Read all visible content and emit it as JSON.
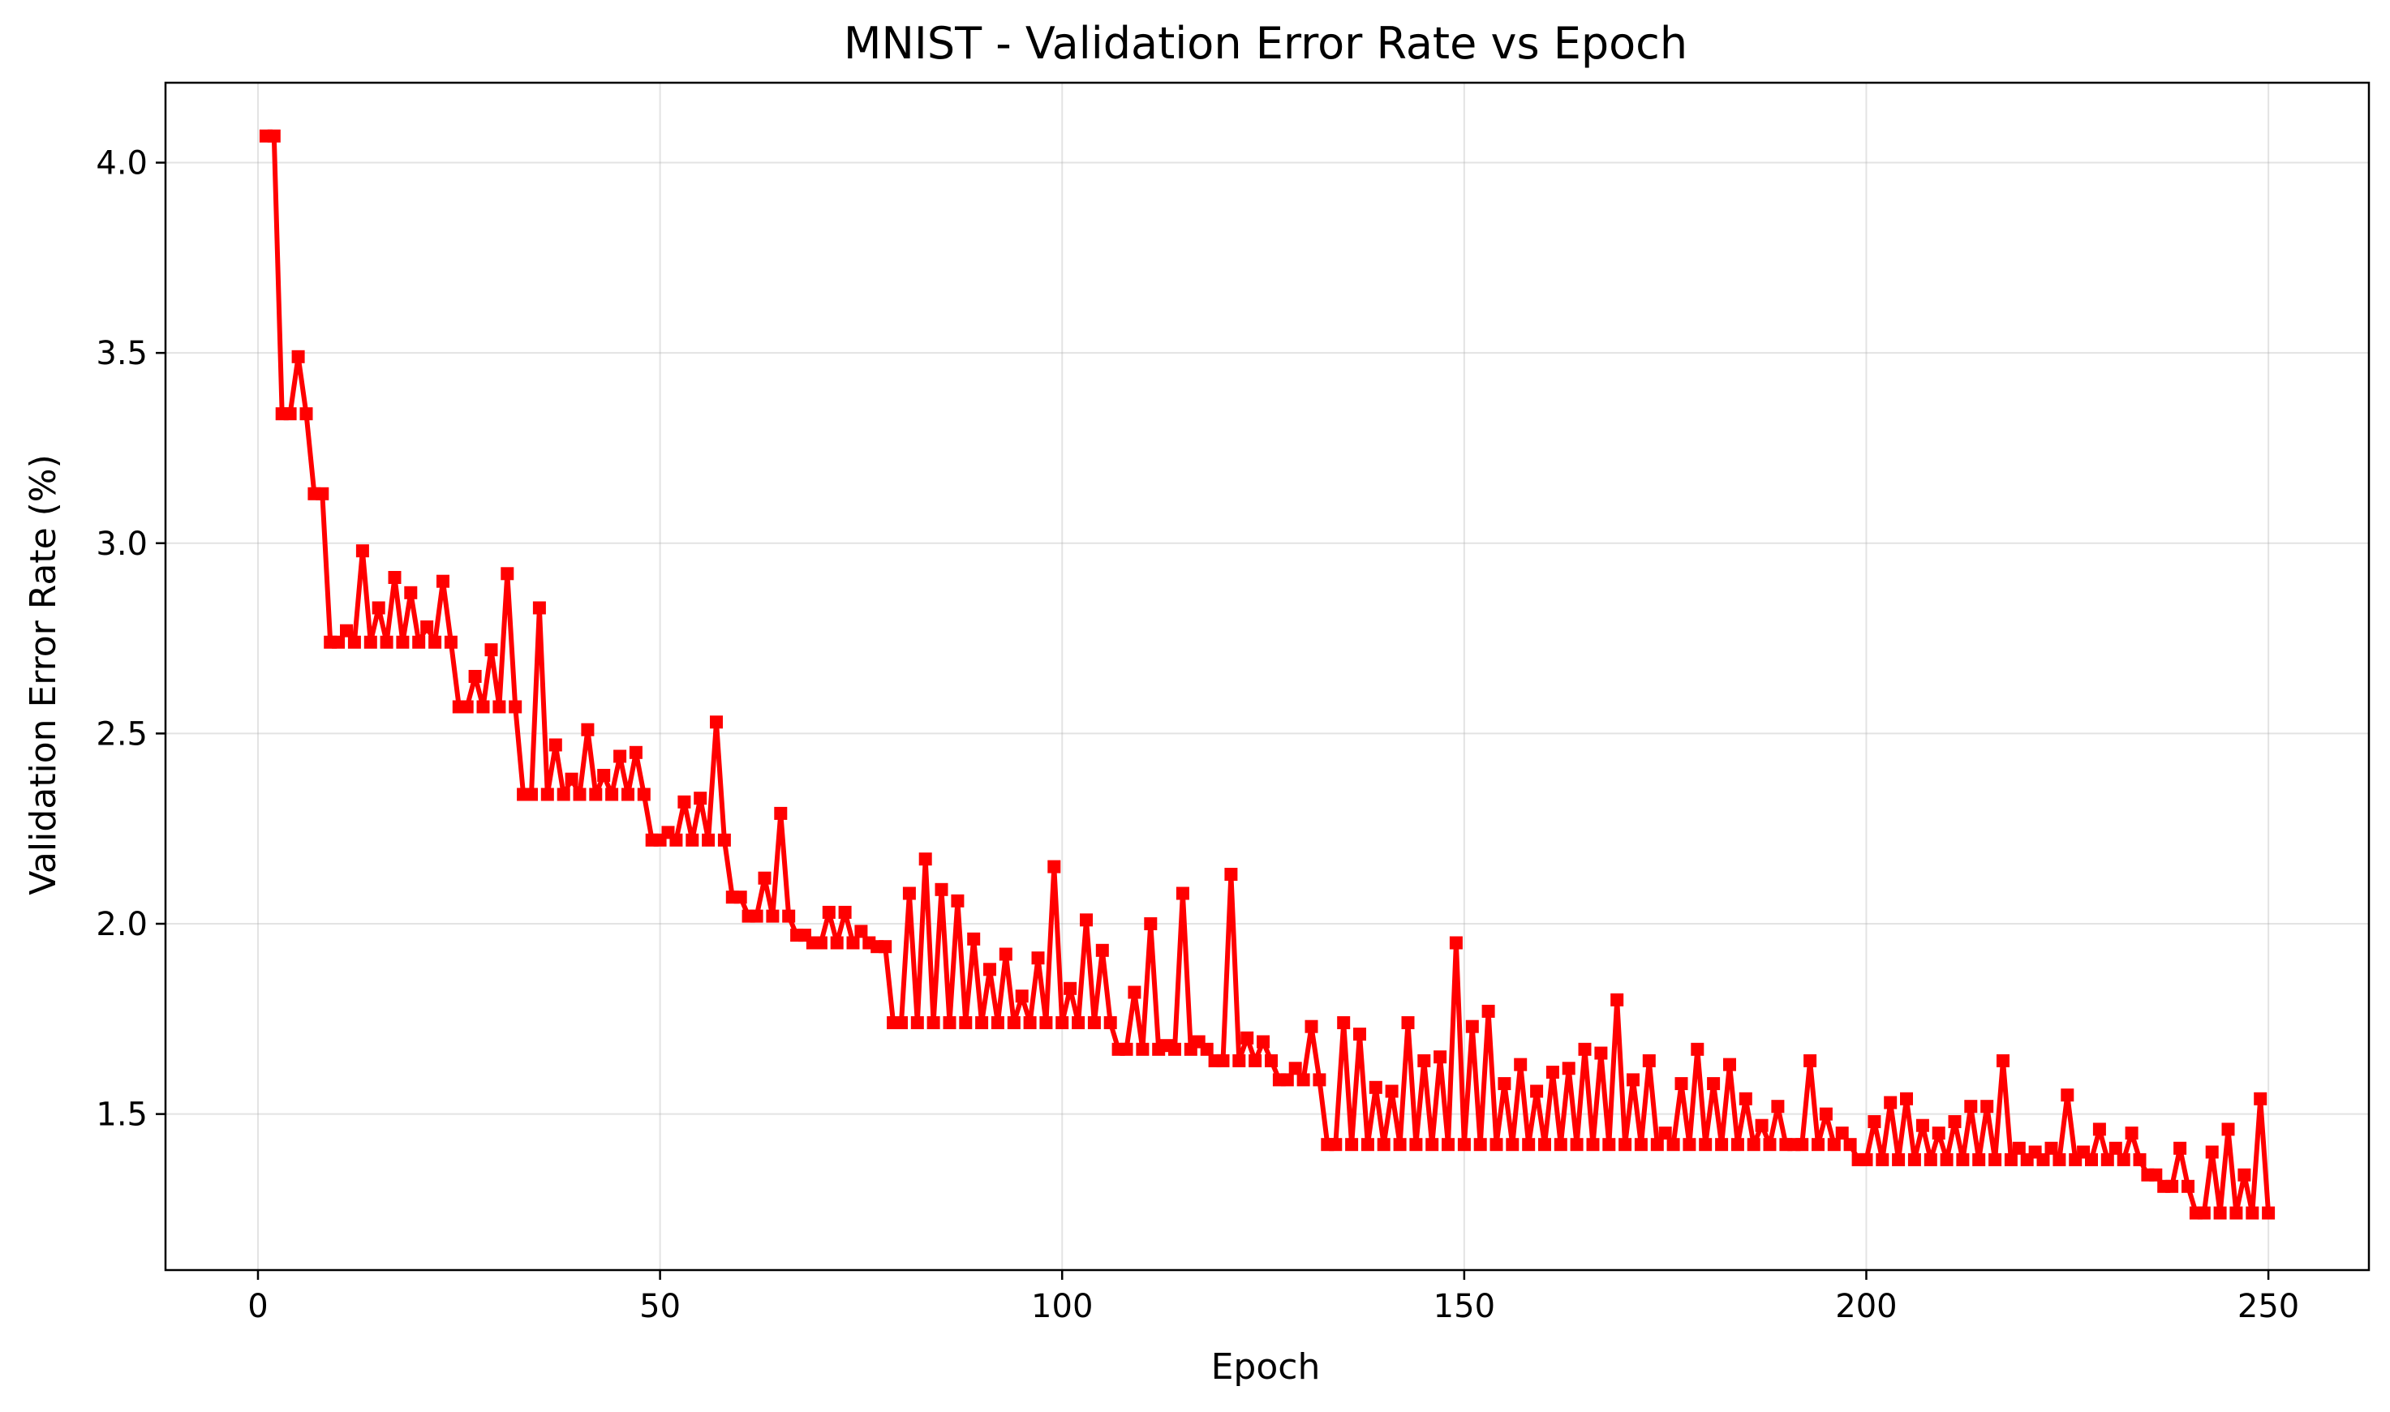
{
  "chart_data": {
    "type": "line",
    "title": "MNIST - Validation Error Rate vs Epoch",
    "xlabel": "Epoch",
    "ylabel": "Validation Error Rate (%)",
    "xlim": [
      -11.5,
      262.5
    ],
    "ylim": [
      1.09,
      4.21
    ],
    "xticks": [
      0,
      50,
      100,
      150,
      200,
      250
    ],
    "yticks": [
      1.5,
      2.0,
      2.5,
      3.0,
      3.5,
      4.0
    ],
    "xtick_labels": [
      "0",
      "50",
      "100",
      "150",
      "200",
      "250"
    ],
    "ytick_labels": [
      "1.5",
      "2.0",
      "2.5",
      "3.0",
      "3.5",
      "4.0"
    ],
    "grid": true,
    "legend": "none",
    "series": [
      {
        "color": "#ff0000",
        "marker": "square",
        "x": [
          1,
          2,
          3,
          4,
          5,
          6,
          7,
          8,
          9,
          10,
          11,
          12,
          13,
          14,
          15,
          16,
          17,
          18,
          19,
          20,
          21,
          22,
          23,
          24,
          25,
          26,
          27,
          28,
          29,
          30,
          31,
          32,
          33,
          34,
          35,
          36,
          37,
          38,
          39,
          40,
          41,
          42,
          43,
          44,
          45,
          46,
          47,
          48,
          49,
          50,
          51,
          52,
          53,
          54,
          55,
          56,
          57,
          58,
          59,
          60,
          61,
          62,
          63,
          64,
          65,
          66,
          67,
          68,
          69,
          70,
          71,
          72,
          73,
          74,
          75,
          76,
          77,
          78,
          79,
          80,
          81,
          82,
          83,
          84,
          85,
          86,
          87,
          88,
          89,
          90,
          91,
          92,
          93,
          94,
          95,
          96,
          97,
          98,
          99,
          100,
          101,
          102,
          103,
          104,
          105,
          106,
          107,
          108,
          109,
          110,
          111,
          112,
          113,
          114,
          115,
          116,
          117,
          118,
          119,
          120,
          121,
          122,
          123,
          124,
          125,
          126,
          127,
          128,
          129,
          130,
          131,
          132,
          133,
          134,
          135,
          136,
          137,
          138,
          139,
          140,
          141,
          142,
          143,
          144,
          145,
          146,
          147,
          148,
          149,
          150,
          151,
          152,
          153,
          154,
          155,
          156,
          157,
          158,
          159,
          160,
          161,
          162,
          163,
          164,
          165,
          166,
          167,
          168,
          169,
          170,
          171,
          172,
          173,
          174,
          175,
          176,
          177,
          178,
          179,
          180,
          181,
          182,
          183,
          184,
          185,
          186,
          187,
          188,
          189,
          190,
          191,
          192,
          193,
          194,
          195,
          196,
          197,
          198,
          199,
          200,
          201,
          202,
          203,
          204,
          205,
          206,
          207,
          208,
          209,
          210,
          211,
          212,
          213,
          214,
          215,
          216,
          217,
          218,
          219,
          220,
          221,
          222,
          223,
          224,
          225,
          226,
          227,
          228,
          229,
          230,
          231,
          232,
          233,
          234,
          235,
          236,
          237,
          238,
          239,
          240,
          241,
          242,
          243,
          244,
          245,
          246,
          247,
          248,
          249,
          250
        ],
        "values": [
          4.07,
          4.07,
          3.34,
          3.34,
          3.49,
          3.34,
          3.13,
          3.13,
          2.74,
          2.74,
          2.77,
          2.74,
          2.98,
          2.74,
          2.83,
          2.74,
          2.91,
          2.74,
          2.87,
          2.74,
          2.78,
          2.74,
          2.9,
          2.74,
          2.57,
          2.57,
          2.65,
          2.57,
          2.72,
          2.57,
          2.92,
          2.57,
          2.34,
          2.34,
          2.83,
          2.34,
          2.47,
          2.34,
          2.38,
          2.34,
          2.51,
          2.34,
          2.39,
          2.34,
          2.44,
          2.34,
          2.45,
          2.34,
          2.22,
          2.22,
          2.24,
          2.22,
          2.32,
          2.22,
          2.33,
          2.22,
          2.53,
          2.22,
          2.07,
          2.07,
          2.02,
          2.02,
          2.12,
          2.02,
          2.29,
          2.02,
          1.97,
          1.97,
          1.95,
          1.95,
          2.03,
          1.95,
          2.03,
          1.95,
          1.98,
          1.95,
          1.94,
          1.94,
          1.74,
          1.74,
          2.08,
          1.74,
          2.17,
          1.74,
          2.09,
          1.74,
          2.06,
          1.74,
          1.96,
          1.74,
          1.88,
          1.74,
          1.92,
          1.74,
          1.81,
          1.74,
          1.91,
          1.74,
          2.15,
          1.74,
          1.83,
          1.74,
          2.01,
          1.74,
          1.93,
          1.74,
          1.67,
          1.67,
          1.82,
          1.67,
          2.0,
          1.67,
          1.68,
          1.67,
          2.08,
          1.67,
          1.69,
          1.67,
          1.64,
          1.64,
          2.13,
          1.64,
          1.7,
          1.64,
          1.69,
          1.64,
          1.59,
          1.59,
          1.62,
          1.59,
          1.73,
          1.59,
          1.42,
          1.42,
          1.74,
          1.42,
          1.71,
          1.42,
          1.57,
          1.42,
          1.56,
          1.42,
          1.74,
          1.42,
          1.64,
          1.42,
          1.65,
          1.42,
          1.95,
          1.42,
          1.73,
          1.42,
          1.77,
          1.42,
          1.58,
          1.42,
          1.63,
          1.42,
          1.56,
          1.42,
          1.61,
          1.42,
          1.62,
          1.42,
          1.67,
          1.42,
          1.66,
          1.42,
          1.8,
          1.42,
          1.59,
          1.42,
          1.64,
          1.42,
          1.45,
          1.42,
          1.58,
          1.42,
          1.67,
          1.42,
          1.58,
          1.42,
          1.63,
          1.42,
          1.54,
          1.42,
          1.47,
          1.42,
          1.52,
          1.42,
          1.42,
          1.42,
          1.64,
          1.42,
          1.5,
          1.42,
          1.45,
          1.42,
          1.38,
          1.38,
          1.48,
          1.38,
          1.53,
          1.38,
          1.54,
          1.38,
          1.47,
          1.38,
          1.45,
          1.38,
          1.48,
          1.38,
          1.52,
          1.38,
          1.52,
          1.38,
          1.64,
          1.38,
          1.41,
          1.38,
          1.4,
          1.38,
          1.41,
          1.38,
          1.55,
          1.38,
          1.4,
          1.38,
          1.46,
          1.38,
          1.41,
          1.38,
          1.45,
          1.38,
          1.34,
          1.34,
          1.31,
          1.31,
          1.41,
          1.31,
          1.24,
          1.24,
          1.4,
          1.24,
          1.46,
          1.24,
          1.34,
          1.24,
          1.54,
          1.24
        ]
      }
    ]
  }
}
